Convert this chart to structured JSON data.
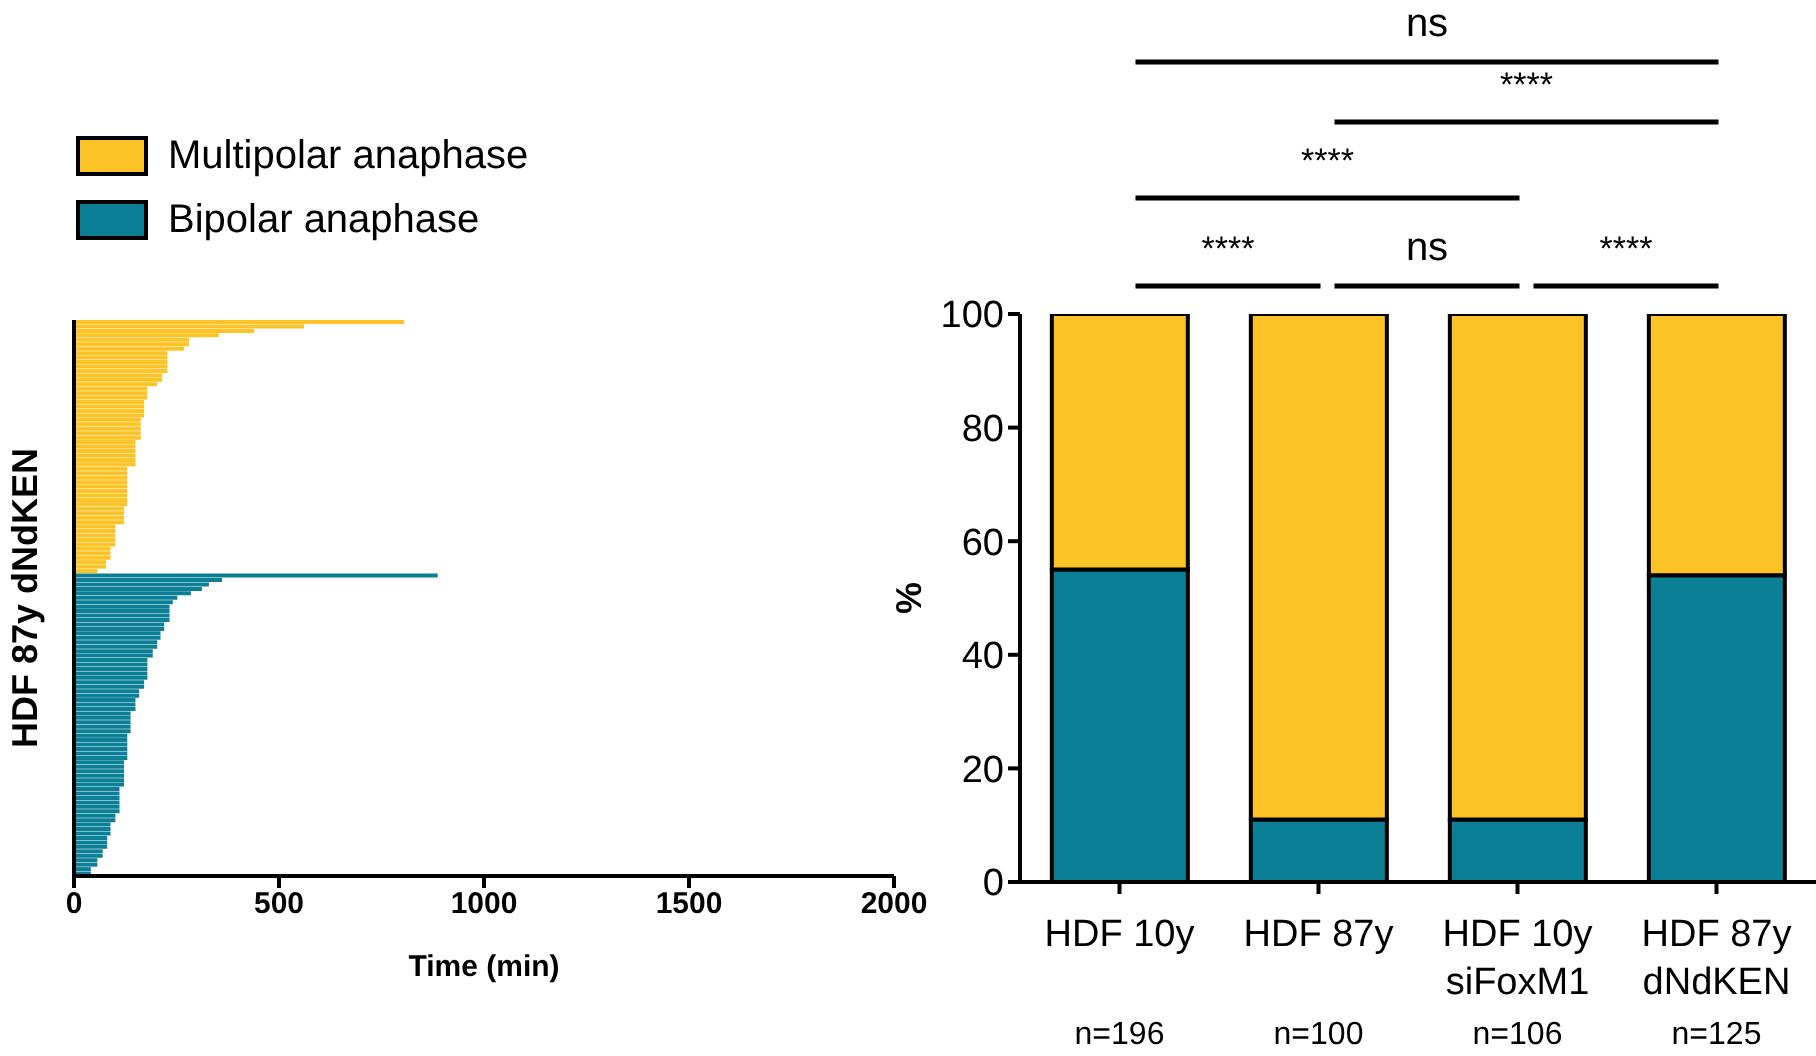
{
  "chart_data": [
    {
      "type": "bar",
      "orientation": "horizontal",
      "stacked": true,
      "ylabel": "HDF 87y dNdKEN",
      "xlabel": "Time (min)",
      "xlim": [
        0,
        2000
      ],
      "xticks": [
        0,
        500,
        1000,
        1500,
        2000
      ],
      "tick_labels": "x",
      "grid": false,
      "legend": "top left",
      "categories": [
        null,
        null,
        null,
        null,
        null,
        null,
        null,
        null,
        null,
        null,
        null,
        null,
        null,
        null,
        null,
        null,
        null,
        null,
        null,
        null,
        null,
        null,
        null,
        null,
        null,
        null,
        null,
        null,
        null,
        null,
        null,
        null,
        null,
        null,
        null,
        null,
        null,
        null,
        null,
        null,
        null,
        null,
        null,
        null,
        null,
        null,
        null,
        null,
        null,
        null,
        null,
        null,
        null,
        null,
        null,
        null,
        null,
        null,
        null,
        null,
        null,
        null,
        null,
        null,
        null,
        null,
        null,
        null,
        null,
        null,
        null,
        null,
        null,
        null,
        null,
        null,
        null,
        null,
        null,
        null,
        null,
        null,
        null,
        null,
        null,
        null,
        null,
        null,
        null,
        null,
        null,
        null,
        null,
        null,
        null,
        null,
        null,
        null,
        null,
        null,
        null,
        null,
        null,
        null,
        null,
        null,
        null,
        null,
        null,
        null,
        null,
        null,
        null,
        null,
        null,
        null,
        null,
        null,
        null,
        null,
        null,
        null,
        null,
        null,
        null
      ],
      "series": [
        {
          "name": "Multipolar anaphase",
          "color": "#fbc325",
          "values": [
            805,
            561,
            439,
            353,
            281,
            281,
            268,
            228,
            228,
            228,
            228,
            228,
            215,
            215,
            203,
            179,
            179,
            179,
            171,
            171,
            171,
            171,
            163,
            163,
            163,
            163,
            163,
            150,
            150,
            150,
            150,
            150,
            150,
            130,
            130,
            130,
            130,
            130,
            130,
            130,
            130,
            130,
            122,
            122,
            122,
            122,
            101,
            101,
            101,
            101,
            101,
            89,
            89,
            89,
            78,
            78,
            57,
            null,
            null,
            null,
            null,
            null,
            null,
            null,
            null,
            null,
            null,
            null,
            null,
            null,
            null,
            null,
            null,
            null,
            null,
            null,
            null,
            null,
            null,
            null,
            null,
            null,
            null,
            null,
            null,
            null,
            null,
            null,
            null,
            null,
            null,
            null,
            null,
            null,
            null,
            null,
            null,
            null,
            null,
            null,
            null,
            null,
            null,
            null,
            null,
            null,
            null,
            null,
            null,
            null,
            null,
            null,
            null,
            null,
            null,
            null,
            null,
            null,
            null,
            null,
            null,
            null,
            null,
            null,
            null
          ]
        },
        {
          "name": "Bipolar anaphase",
          "color": "#0a7f96",
          "values": [
            null,
            null,
            null,
            null,
            null,
            null,
            null,
            null,
            null,
            null,
            null,
            null,
            null,
            null,
            null,
            null,
            null,
            null,
            null,
            null,
            null,
            null,
            null,
            null,
            null,
            null,
            null,
            null,
            null,
            null,
            null,
            null,
            null,
            null,
            null,
            null,
            null,
            null,
            null,
            null,
            null,
            null,
            null,
            null,
            null,
            null,
            null,
            null,
            null,
            null,
            null,
            null,
            null,
            null,
            null,
            null,
            null,
            887,
            361,
            329,
            312,
            285,
            252,
            241,
            233,
            233,
            233,
            233,
            220,
            220,
            211,
            211,
            203,
            203,
            192,
            192,
            179,
            179,
            179,
            179,
            179,
            171,
            171,
            159,
            159,
            150,
            150,
            150,
            138,
            138,
            138,
            138,
            138,
            130,
            130,
            130,
            130,
            130,
            130,
            122,
            122,
            122,
            122,
            122,
            122,
            111,
            111,
            111,
            111,
            111,
            111,
            101,
            101,
            89,
            89,
            89,
            81,
            81,
            81,
            70,
            70,
            57,
            57,
            41,
            41
          ]
        }
      ]
    },
    {
      "type": "bar",
      "stacked": true,
      "ylabel": "%",
      "ylim": [
        0,
        100
      ],
      "yticks": [
        0,
        20,
        40,
        60,
        80,
        100
      ],
      "grid": false,
      "categories": [
        "HDF 10y",
        "HDF 87y",
        "HDF 10y\nsiFoxM1",
        "HDF 87y\ndNdKEN"
      ],
      "series": [
        {
          "color": "#0a7f96",
          "values": [
            55,
            11,
            11,
            54
          ]
        },
        {
          "color": "#fbc325",
          "values": [
            45,
            89,
            89,
            46
          ]
        }
      ],
      "annotations": [
        "ns",
        "****",
        "****",
        "****",
        "ns",
        "****",
        "n=196",
        "n=100",
        "n=106",
        "n=125"
      ]
    }
  ]
}
